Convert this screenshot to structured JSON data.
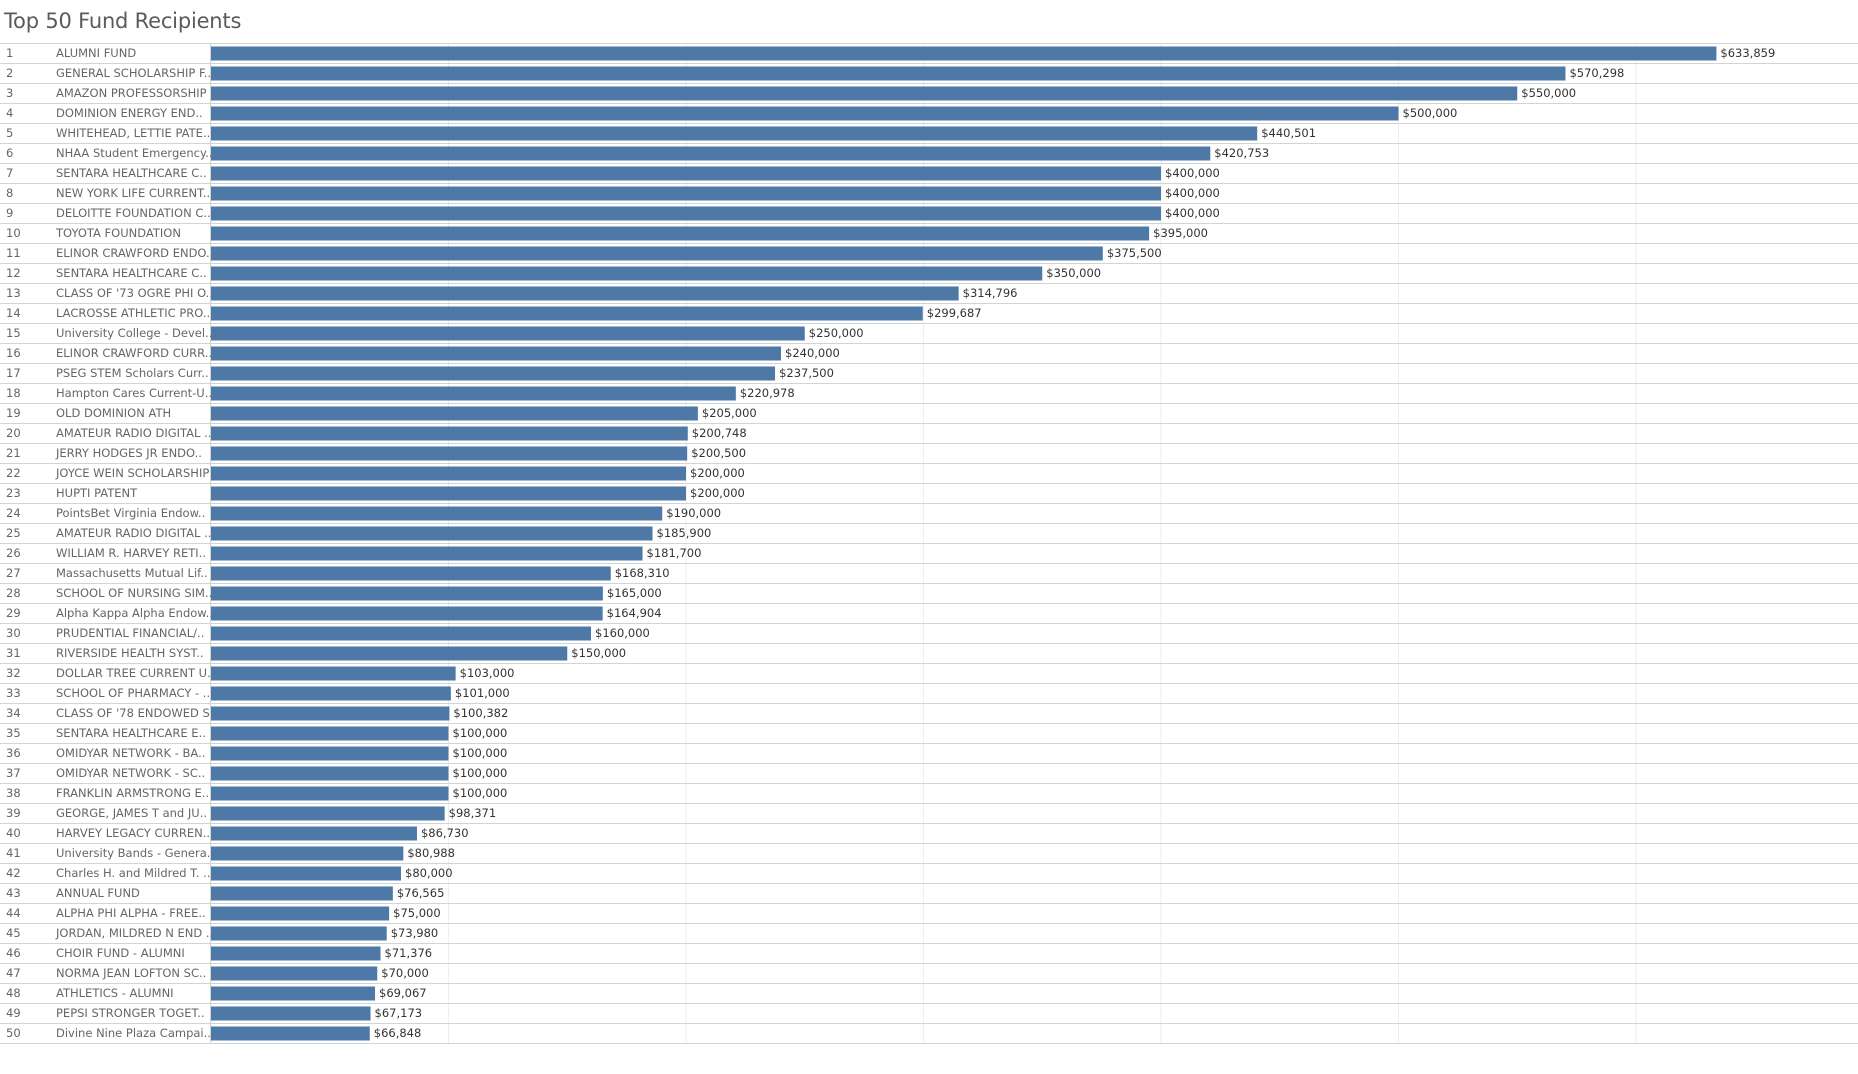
{
  "page": {
    "title": "Top 50 Fund Recipients"
  },
  "colors": {
    "bar": "#4e79a7",
    "rank_text": "#666666",
    "label_text": "#666666",
    "value_text": "#333333",
    "grid": "#eeeeee",
    "row_border": "#d4d4d4"
  },
  "chart_data": {
    "type": "bar",
    "orientation": "horizontal",
    "title": "Top 50 Fund Recipients",
    "xlim": [
      0,
      700000
    ],
    "grid": true,
    "value_format": "currency_usd",
    "ranks": [
      1,
      2,
      3,
      4,
      5,
      6,
      7,
      8,
      9,
      10,
      11,
      12,
      13,
      14,
      15,
      16,
      17,
      18,
      19,
      20,
      21,
      22,
      23,
      24,
      25,
      26,
      27,
      28,
      29,
      30,
      31,
      32,
      33,
      34,
      35,
      36,
      37,
      38,
      39,
      40,
      41,
      42,
      43,
      44,
      45,
      46,
      47,
      48,
      49,
      50
    ],
    "categories": [
      "ALUMNI FUND",
      "GENERAL SCHOLARSHIP F..",
      "AMAZON PROFESSORSHIP",
      "DOMINION ENERGY END..",
      "WHITEHEAD, LETTIE PATE..",
      "NHAA Student Emergency..",
      "SENTARA HEALTHCARE C..",
      "NEW YORK LIFE CURRENT..",
      "DELOITTE FOUNDATION C..",
      "TOYOTA FOUNDATION",
      "ELINOR CRAWFORD ENDO..",
      "SENTARA HEALTHCARE C..",
      "CLASS OF '73 OGRE PHI O..",
      "LACROSSE ATHLETIC PRO..",
      "University College - Devel..",
      "ELINOR CRAWFORD CURR..",
      "PSEG STEM Scholars Curr..",
      "Hampton Cares Current-U..",
      "OLD DOMINION ATH",
      "AMATEUR RADIO DIGITAL ..",
      "JERRY HODGES JR ENDO..",
      "JOYCE WEIN SCHOLARSHIP",
      "HUPTI PATENT",
      "PointsBet Virginia Endow..",
      "AMATEUR RADIO DIGITAL ..",
      "WILLIAM R. HARVEY RETI..",
      "Massachusetts Mutual Lif..",
      "SCHOOL OF NURSING SIM..",
      "Alpha Kappa Alpha Endow..",
      "PRUDENTIAL FINANCIAL/..",
      "RIVERSIDE HEALTH SYST..",
      "DOLLAR TREE CURRENT U..",
      "SCHOOL OF PHARMACY - ..",
      "CLASS OF '78 ENDOWED S..",
      "SENTARA HEALTHCARE E..",
      "OMIDYAR NETWORK - BA..",
      "OMIDYAR NETWORK  - SC..",
      "FRANKLIN ARMSTRONG E..",
      "GEORGE, JAMES T and JU..",
      "HARVEY LEGACY CURREN..",
      "University Bands - Genera..",
      "Charles H. and Mildred T. ..",
      "ANNUAL FUND",
      "ALPHA PHI ALPHA - FREE..",
      "JORDAN, MILDRED N END ..",
      "CHOIR FUND - ALUMNI",
      "NORMA JEAN LOFTON SC..",
      "ATHLETICS - ALUMNI",
      "PEPSI STRONGER TOGET..",
      "Divine Nine Plaza Campai.."
    ],
    "values": [
      633859,
      570298,
      550000,
      500000,
      440501,
      420753,
      400000,
      400000,
      400000,
      395000,
      375500,
      350000,
      314796,
      299687,
      250000,
      240000,
      237500,
      220978,
      205000,
      200748,
      200500,
      200000,
      200000,
      190000,
      185900,
      181700,
      168310,
      165000,
      164904,
      160000,
      150000,
      103000,
      101000,
      100382,
      100000,
      100000,
      100000,
      100000,
      98371,
      86730,
      80988,
      80000,
      76565,
      75000,
      73980,
      71376,
      70000,
      69067,
      67173,
      66848
    ],
    "value_labels": [
      "$633,859",
      "$570,298",
      "$550,000",
      "$500,000",
      "$440,501",
      "$420,753",
      "$400,000",
      "$400,000",
      "$400,000",
      "$395,000",
      "$375,500",
      "$350,000",
      "$314,796",
      "$299,687",
      "$250,000",
      "$240,000",
      "$237,500",
      "$220,978",
      "$205,000",
      "$200,748",
      "$200,500",
      "$200,000",
      "$200,000",
      "$190,000",
      "$185,900",
      "$181,700",
      "$168,310",
      "$165,000",
      "$164,904",
      "$160,000",
      "$150,000",
      "$103,000",
      "$101,000",
      "$100,382",
      "$100,000",
      "$100,000",
      "$100,000",
      "$100,000",
      "$98,371",
      "$86,730",
      "$80,988",
      "$80,000",
      "$76,565",
      "$75,000",
      "$73,980",
      "$71,376",
      "$70,000",
      "$69,067",
      "$67,173",
      "$66,848"
    ]
  }
}
